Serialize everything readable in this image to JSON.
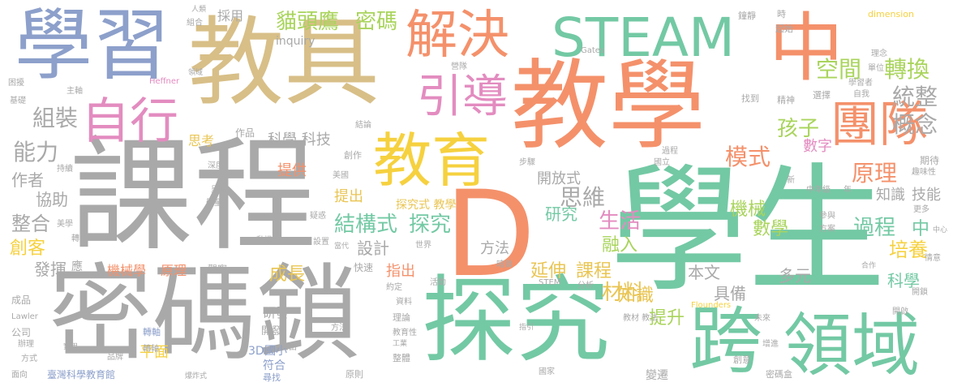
{
  "colors": {
    "gray": "#a9a9a9",
    "orange": "#f4916b",
    "green": "#73c9a4",
    "tan": "#d8bf88",
    "yellow": "#f6d13f",
    "blue": "#8da0cb",
    "pink": "#e38cc0",
    "lime": "#a9d45c",
    "gold": "#e9c553"
  },
  "words": {
    "xuexi": "學習",
    "jiaoju": "教具",
    "jiejue": "解決",
    "steam": "STEAM",
    "zhong_big": "中",
    "jiaoxue": "教學",
    "kecheng": "課程",
    "xuesheng": "學生",
    "mimasuo": "密碼鎖",
    "tanjiu": "探究",
    "d": "D",
    "kua": "跨",
    "lingyu": "領域",
    "jiaoyu": "教育",
    "zixing": "自行",
    "yindao": "引導",
    "tuandui": "團隊",
    "maotouying": "貓頭鷹",
    "mima": "密碼",
    "kongjian": "空間",
    "zhuanhuan": "轉換",
    "tongzheng": "統整",
    "gainian": "概念",
    "zuzhuang": "組裝",
    "nengli": "能力",
    "kexue_keji": "科學 科技",
    "haizi": "孩子",
    "shuzi": "數字",
    "moshi": "模式",
    "yuanli": "原理",
    "jiegoushi": "結構式",
    "tanjiu2": "探究",
    "siwei": "思維",
    "kaifangshi": "開放式",
    "shuxue": "數學",
    "guocheng": "過程",
    "zhong_small": "中",
    "zhengge": "整合",
    "xiezhu": "協助",
    "chuangke": "創客",
    "fahui": "發揮",
    "shengzhang": "成長",
    "yanshen": "延伸",
    "kecheng2": "課程",
    "cailiao": "材料",
    "tisheng": "提升",
    "jiqie": "機械",
    "shenghuo": "生活",
    "yanjiu": "研究",
    "rongru": "融入",
    "peiyang": "培養",
    "kexue": "科學",
    "duoyuan": "多元",
    "zhishi": "知識",
    "juBei": "具備",
    "benwen": "本文",
    "fangfa": "方法",
    "sheji": "設計",
    "tichu": "提出",
    "zhichu": "指出",
    "tigong": "提供",
    "yanfa": "研發",
    "pingmian": "平面",
    "sikao": "思考",
    "jineng": "技能",
    "zhishi2": "知識",
    "jixiexue": "機械學",
    "yuanli2": "原理",
    "zuozhe": "作者",
    "tanjiushi": "探究式 教學",
    "kaifa": "開發",
    "caiyong": "採用",
    "inquiry": "inquiry",
    "dimension": "dimension",
    "gates": "Gates",
    "heffner": "Heffner",
    "lawler": "Lawler",
    "flounders": "Flounders",
    "stem": "STEM",
    "taiwan": "臺灣科學教育館",
    "d3": "3D",
    "guoxiao": "國小",
    "fuhe": "符合",
    "xunzhao": "尋找",
    "zhuanzhou": "轉軸",
    "yuanze": "原則",
    "zhengzhuang": "整體",
    "jiaoyuxing": "教育性",
    "chuangzuo": "創作",
    "shiyong": "實用",
    "bianqian": "變遷",
    "chuangyi": "創意",
    "mimahe": "密碼盒",
    "zhongnianji": "中年級",
    "xin": "新",
    "nian": "年",
    "qidai": "期待",
    "quweixing": "趣味性",
    "canyu": "參與",
    "fangan": "方案",
    "gengduo": "更多",
    "qingsu": "情意",
    "kaisuo": "開鎖",
    "kaipo": "開啟",
    "tuanjie": "團結",
    "zhaodao": "找到",
    "jingshen": "精神",
    "xuanze": "選擇",
    "zixing2": "自我",
    "xuexizhe": "學習者",
    "lini": "理念",
    "danwei": "單位",
    "qishi": "起始",
    "shijian": "時",
    "zhongjing": "鐘靜",
    "jingyu": "鏡之",
    "zixing3": "自行",
    "guanzhu": "關注",
    "huodong": "活動",
    "dongji": "動機",
    "yiyi": "疑惑",
    "meixue": "美學",
    "zhuanz": "轉",
    "chengpin": "成品",
    "gongsi": "公司",
    "banli": "辦理",
    "fangshi": "方式",
    "mianxiang": "面向",
    "pinpai": "品牌",
    "baozhashi": "爆炸式",
    "zhuanzhou2": "轉軸",
    "shiji": "實際",
    "jiben": "基礎",
    "kunrao": "困擾",
    "zhuzhou": "主軸",
    "zuhe": "組合",
    "renlei": "人類",
    "lingyu2": "領域",
    "huodui": "營隊",
    "ziyou": "自由",
    "jieguo": "結論",
    "zuopin": "作品",
    "shendu": "深度",
    "chixu": "持續",
    "chengxian": "呈現",
    "xuetong": "學童",
    "meiguo": "美國",
    "buzhou": "步驟",
    "guoli": "國立",
    "guocheng2": "過程",
    "shijie": "世界",
    "dangdai": "當代",
    "jiguan": "機關",
    "anyuan": "暗鎖",
    "fenxi": "分析",
    "kuaisu": "快速",
    "yueding": "約定",
    "shiliao": "資料",
    "lilun": "理論",
    "gongye": "工業",
    "shouyi": "首頁",
    "jiaocai": "教材 教法",
    "zhiyin": "指引",
    "weilai": "未來",
    "zengjin": "增進",
    "guojia": "國家",
    "fangfa2": "方法",
    "shezhi": "設置",
    "yingyong": "應",
    "guancha": "觀察",
    "hezuo": "合作",
    "zhongxin": "中心"
  }
}
